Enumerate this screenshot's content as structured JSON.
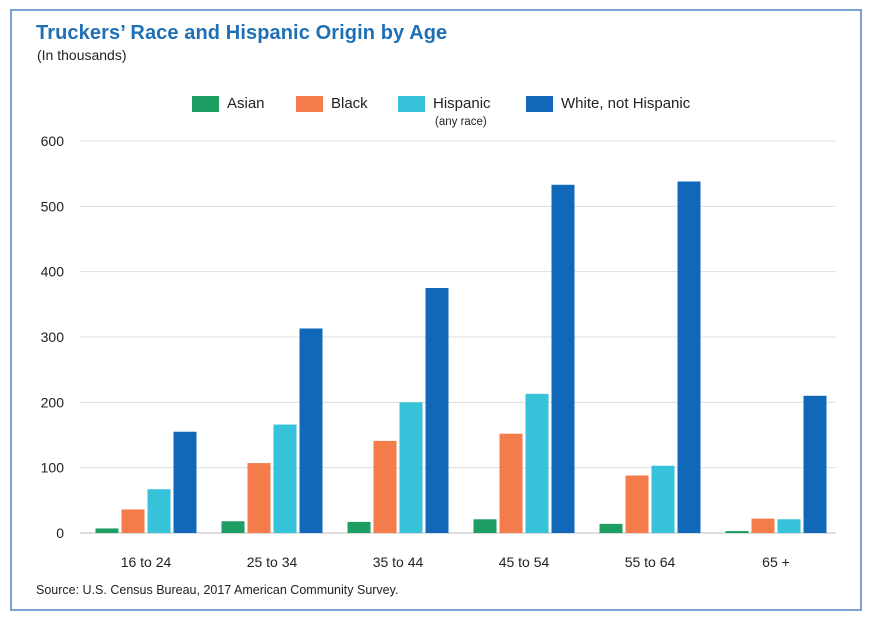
{
  "title": "Truckers’ Race and Hispanic Origin by Age",
  "subtitle": "(In thousands)",
  "source": "Source: U.S. Census Bureau, 2017 American Community Survey.",
  "legend": [
    {
      "label": "Asian",
      "sub": ""
    },
    {
      "label": "Black",
      "sub": ""
    },
    {
      "label": "Hispanic",
      "sub": "(any race)"
    },
    {
      "label": "White, not Hispanic",
      "sub": ""
    }
  ],
  "colors": {
    "asian": "#1e9e63",
    "black": "#f47c4b",
    "hispanic": "#36c2d9",
    "white": "#1167b8",
    "grid": "#dddddd",
    "frame": "#7aa3cf",
    "title": "#1f6fb6"
  },
  "chart_data": {
    "type": "bar",
    "categories": [
      "16 to 24",
      "25 to 34",
      "35 to 44",
      "45 to 54",
      "55 to 64",
      "65 +"
    ],
    "series": [
      {
        "name": "Asian",
        "values": [
          7,
          18,
          17,
          21,
          14,
          3
        ]
      },
      {
        "name": "Black",
        "values": [
          36,
          107,
          141,
          152,
          88,
          22
        ]
      },
      {
        "name": "Hispanic",
        "values": [
          67,
          166,
          200,
          213,
          103,
          21
        ]
      },
      {
        "name": "White, not Hispanic",
        "values": [
          155,
          313,
          375,
          533,
          538,
          210
        ]
      }
    ],
    "yticks": [
      0,
      100,
      200,
      300,
      400,
      500,
      600
    ],
    "ylim": [
      0,
      600
    ],
    "xlabel": "",
    "ylabel": "",
    "grid": true,
    "legend_position": "top"
  }
}
